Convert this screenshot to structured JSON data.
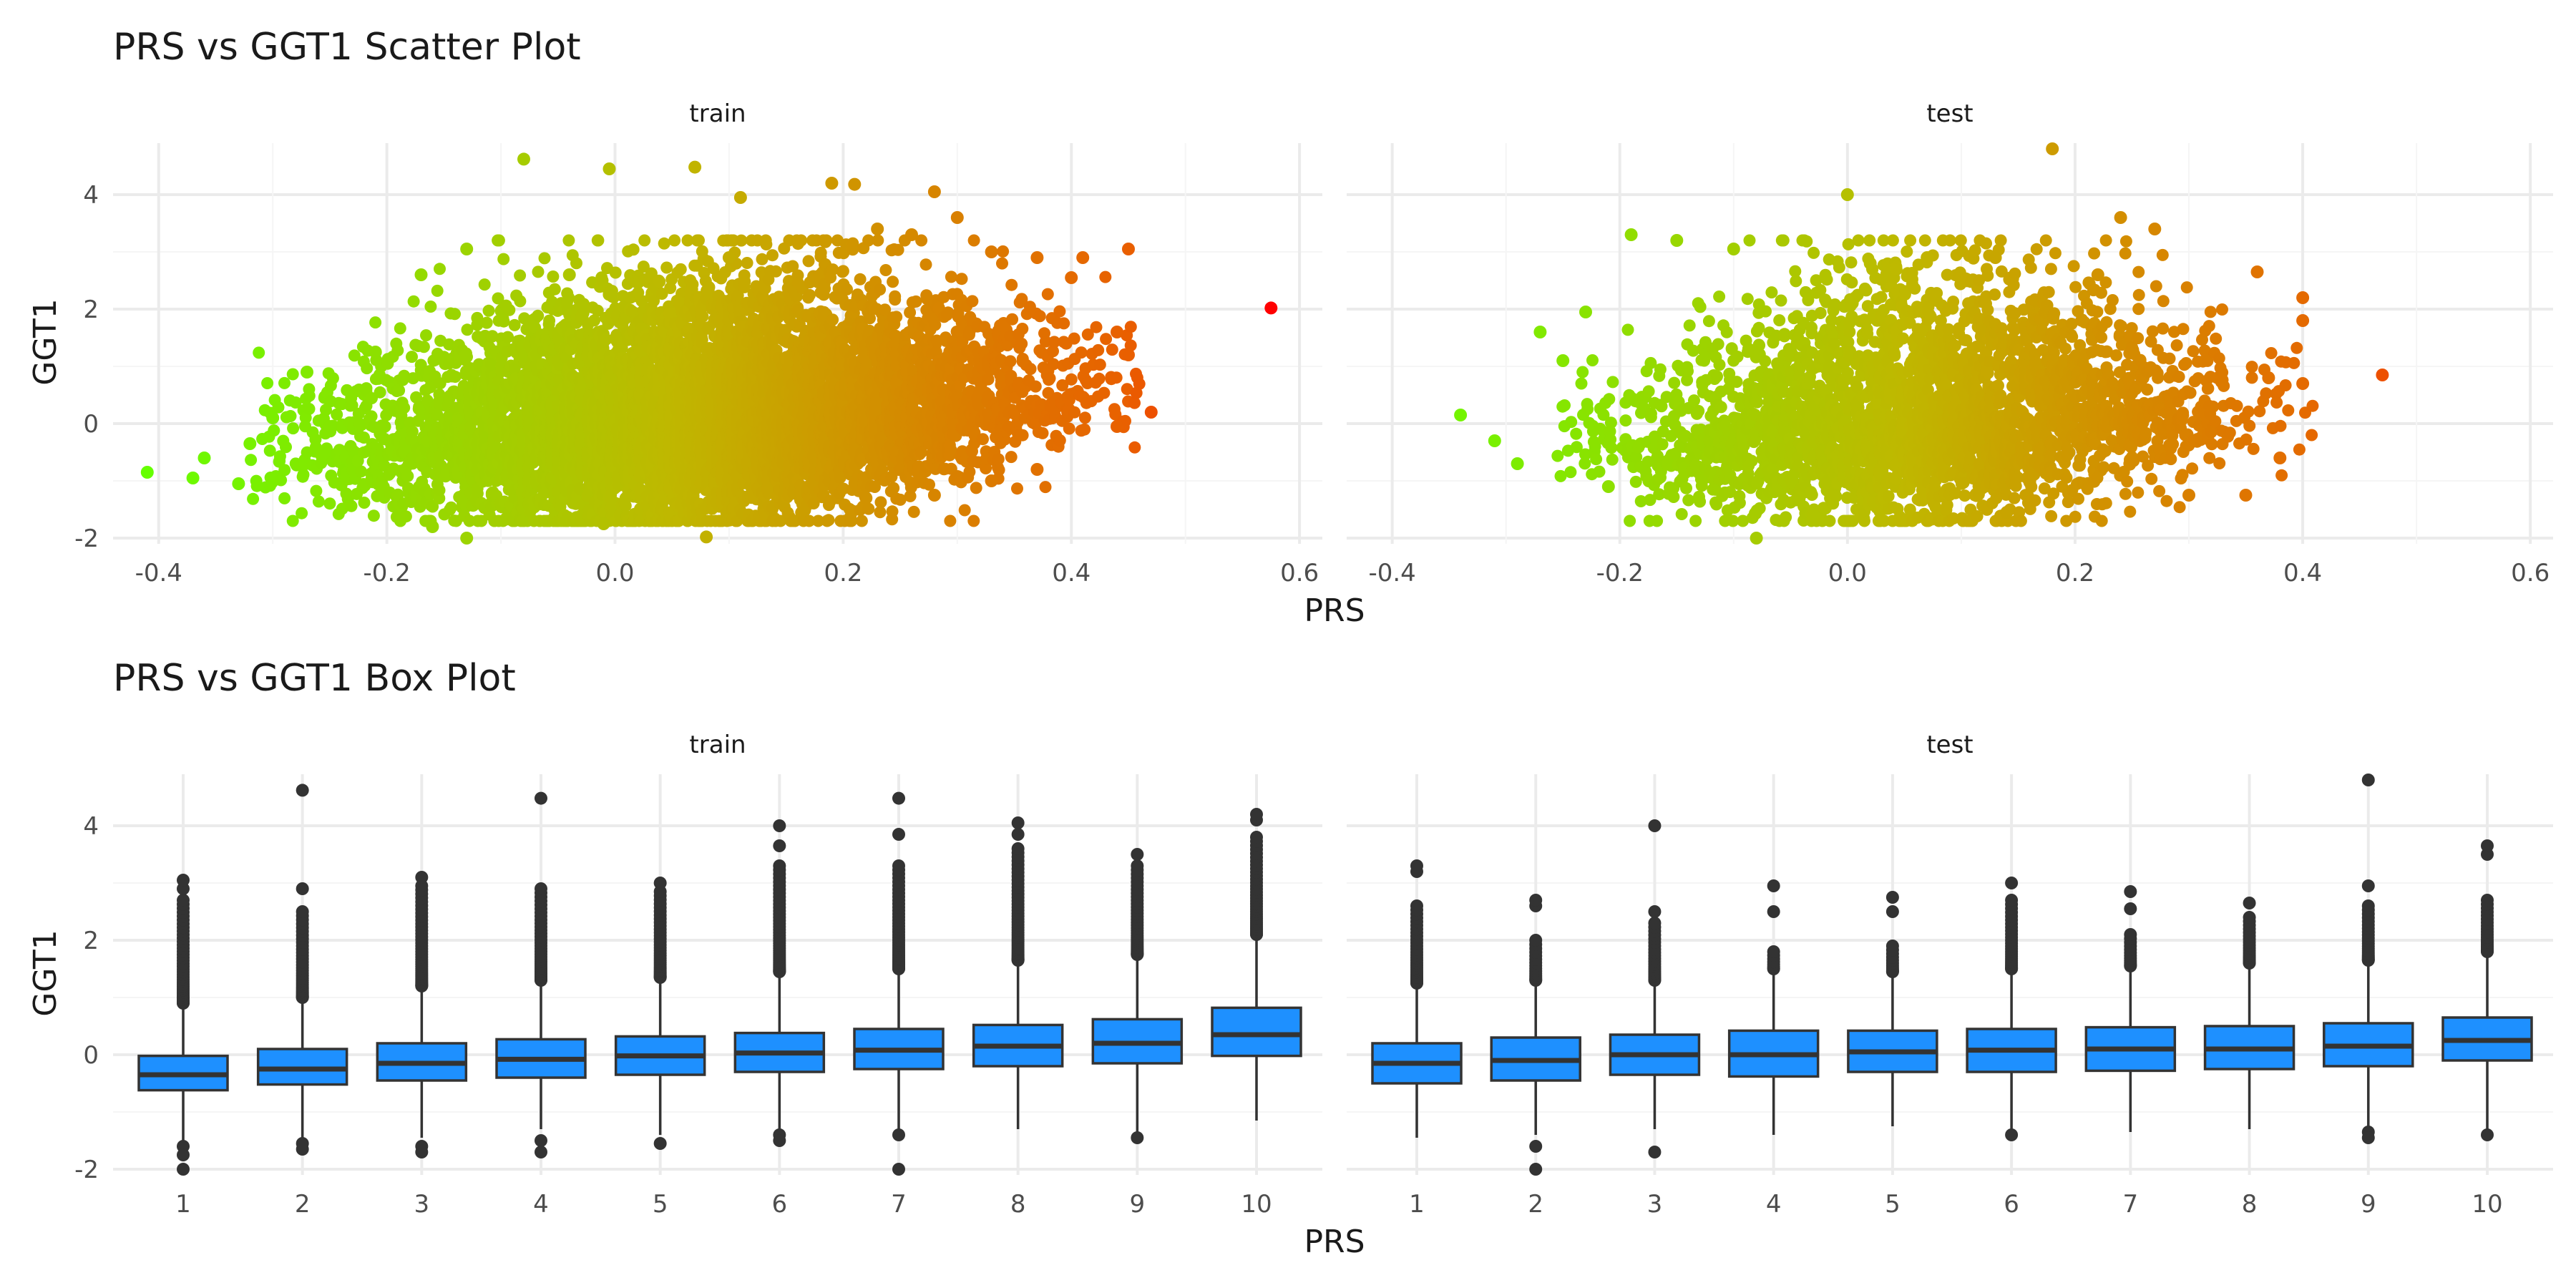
{
  "colors": {
    "grid_major": "#EBEBEB",
    "grid_minor": "#F5F5F5",
    "axis_text": "#4D4D4D",
    "title_text": "#1A1A1A",
    "box_fill": "#1E90FF",
    "box_stroke": "#333333",
    "gradient_low": "#66FF00",
    "gradient_mid": "#BFB800",
    "gradient_high": "#FF0000"
  },
  "scatter": {
    "title": "PRS vs GGT1 Scatter Plot",
    "xlabel": "PRS",
    "ylabel": "GGT1"
  },
  "box": {
    "title": "PRS vs GGT1 Box Plot",
    "xlabel": "PRS",
    "ylabel": "GGT1"
  },
  "chart_data": [
    {
      "type": "scatter",
      "title": "PRS vs GGT1 Scatter Plot",
      "xlabel": "PRS",
      "ylabel": "GGT1",
      "facets": [
        "train",
        "test"
      ],
      "xlim": [
        -0.44,
        0.62
      ],
      "ylim": [
        -2.1,
        4.9
      ],
      "xticks": [
        -0.4,
        -0.2,
        0.0,
        0.2,
        0.4,
        0.6
      ],
      "xtick_labels": [
        "-0.4",
        "-0.2",
        "0.0",
        "0.2",
        "0.4",
        "0.6"
      ],
      "yticks": [
        -2,
        0,
        2,
        4
      ],
      "ytick_labels": [
        "-2",
        "0",
        "2",
        "4"
      ],
      "grid": true,
      "color_encoding": "PRS (green → red)",
      "points": {
        "train": [
          [
            -0.41,
            -0.85
          ],
          [
            -0.37,
            -0.95
          ],
          [
            -0.36,
            -0.6
          ],
          [
            -0.33,
            -1.05
          ],
          [
            -0.32,
            -0.35
          ],
          [
            -0.3,
            0.1
          ],
          [
            -0.27,
            0.9
          ],
          [
            -0.25,
            -0.05
          ],
          [
            -0.21,
            1.25
          ],
          [
            -0.17,
            2.6
          ],
          [
            -0.16,
            -1.8
          ],
          [
            -0.13,
            -2.0
          ],
          [
            -0.13,
            3.05
          ],
          [
            -0.08,
            4.62
          ],
          [
            -0.04,
            2.6
          ],
          [
            -0.01,
            -1.75
          ],
          [
            -0.005,
            4.45
          ],
          [
            0.07,
            4.48
          ],
          [
            0.08,
            -1.98
          ],
          [
            0.11,
            3.95
          ],
          [
            0.1,
            2.9
          ],
          [
            0.19,
            4.2
          ],
          [
            0.21,
            4.18
          ],
          [
            0.23,
            3.4
          ],
          [
            0.26,
            3.3
          ],
          [
            0.28,
            4.05
          ],
          [
            0.3,
            3.6
          ],
          [
            0.33,
            3.0
          ],
          [
            0.37,
            2.9
          ],
          [
            0.4,
            2.55
          ],
          [
            0.41,
            2.9
          ],
          [
            0.44,
            1.6
          ],
          [
            0.45,
            1.2
          ],
          [
            0.45,
            3.05
          ],
          [
            0.44,
            -0.05
          ],
          [
            0.47,
            0.2
          ],
          [
            0.37,
            -0.8
          ],
          [
            0.33,
            -1.0
          ],
          [
            0.28,
            -1.25
          ],
          [
            0.22,
            -1.3
          ],
          [
            0.575,
            2.02
          ]
        ],
        "test": [
          [
            -0.34,
            0.15
          ],
          [
            -0.31,
            -0.3
          ],
          [
            -0.29,
            -0.7
          ],
          [
            -0.27,
            1.6
          ],
          [
            -0.25,
            1.1
          ],
          [
            -0.23,
            1.95
          ],
          [
            -0.21,
            -1.1
          ],
          [
            -0.19,
            3.3
          ],
          [
            -0.15,
            3.2
          ],
          [
            -0.1,
            3.05
          ],
          [
            -0.08,
            -2.0
          ],
          [
            -0.03,
            -1.6
          ],
          [
            -0.0,
            4.0
          ],
          [
            0.02,
            2.8
          ],
          [
            0.07,
            2.9
          ],
          [
            0.13,
            2.9
          ],
          [
            0.14,
            -1.55
          ],
          [
            0.18,
            4.8
          ],
          [
            0.22,
            2.6
          ],
          [
            0.24,
            3.6
          ],
          [
            0.27,
            3.4
          ],
          [
            0.3,
            -1.25
          ],
          [
            0.35,
            -1.25
          ],
          [
            0.36,
            2.65
          ],
          [
            0.37,
            0.8
          ],
          [
            0.38,
            -0.6
          ],
          [
            0.4,
            2.2
          ],
          [
            0.4,
            1.8
          ],
          [
            0.4,
            0.7
          ],
          [
            0.47,
            0.85
          ]
        ]
      },
      "cloud_shape": {
        "train": {
          "prs_range": [
            -0.3,
            0.44
          ],
          "ggt1_mean_at_min": -0.5,
          "ggt1_mean_at_max": 0.6
        },
        "test": {
          "prs_range": [
            -0.25,
            0.39
          ],
          "ggt1_mean_at_min": -0.3,
          "ggt1_mean_at_max": 0.4
        }
      }
    },
    {
      "type": "box",
      "title": "PRS vs GGT1 Box Plot",
      "xlabel": "PRS",
      "ylabel": "GGT1",
      "facets": [
        "train",
        "test"
      ],
      "categories": [
        "1",
        "2",
        "3",
        "4",
        "5",
        "6",
        "7",
        "8",
        "9",
        "10"
      ],
      "ylim": [
        -2.1,
        4.9
      ],
      "yticks": [
        -2,
        0,
        2,
        4
      ],
      "ytick_labels": [
        "-2",
        "0",
        "2",
        "4"
      ],
      "grid": true,
      "boxes": {
        "train": [
          {
            "category": "1",
            "q1": -0.62,
            "median": -0.35,
            "q3": -0.02,
            "lower": -1.5,
            "upper": 0.9,
            "outliers_high_range": [
              0.9,
              2.7
            ],
            "outliers_high_extra": [
              2.9,
              3.05
            ],
            "outliers_low": [
              -1.6,
              -1.75,
              -2.0
            ]
          },
          {
            "category": "2",
            "q1": -0.52,
            "median": -0.25,
            "q3": 0.1,
            "lower": -1.45,
            "upper": 1.0,
            "outliers_high_range": [
              1.0,
              2.5
            ],
            "outliers_high_extra": [
              2.9,
              4.62
            ],
            "outliers_low": [
              -1.55,
              -1.65
            ]
          },
          {
            "category": "3",
            "q1": -0.45,
            "median": -0.15,
            "q3": 0.2,
            "lower": -1.45,
            "upper": 1.2,
            "outliers_high_range": [
              1.2,
              2.95
            ],
            "outliers_high_extra": [
              3.1
            ],
            "outliers_low": [
              -1.6,
              -1.7
            ]
          },
          {
            "category": "4",
            "q1": -0.4,
            "median": -0.08,
            "q3": 0.27,
            "lower": -1.3,
            "upper": 1.3,
            "outliers_high_range": [
              1.3,
              2.9
            ],
            "outliers_high_extra": [
              4.48
            ],
            "outliers_low": [
              -1.5,
              -1.7
            ]
          },
          {
            "category": "5",
            "q1": -0.35,
            "median": -0.02,
            "q3": 0.32,
            "lower": -1.4,
            "upper": 1.35,
            "outliers_high_range": [
              1.35,
              2.85
            ],
            "outliers_high_extra": [
              3.0
            ],
            "outliers_low": [
              -1.55
            ]
          },
          {
            "category": "6",
            "q1": -0.3,
            "median": 0.03,
            "q3": 0.38,
            "lower": -1.3,
            "upper": 1.45,
            "outliers_high_range": [
              1.45,
              3.3
            ],
            "outliers_high_extra": [
              3.65,
              4.0
            ],
            "outliers_low": [
              -1.4,
              -1.5
            ]
          },
          {
            "category": "7",
            "q1": -0.25,
            "median": 0.08,
            "q3": 0.45,
            "lower": -1.3,
            "upper": 1.5,
            "outliers_high_range": [
              1.5,
              3.3
            ],
            "outliers_high_extra": [
              3.85,
              4.48
            ],
            "outliers_low": [
              -1.4,
              -2.0
            ]
          },
          {
            "category": "8",
            "q1": -0.2,
            "median": 0.15,
            "q3": 0.52,
            "lower": -1.3,
            "upper": 1.65,
            "outliers_high_range": [
              1.65,
              3.6
            ],
            "outliers_high_extra": [
              3.85,
              4.05
            ],
            "outliers_low": []
          },
          {
            "category": "9",
            "q1": -0.15,
            "median": 0.2,
            "q3": 0.62,
            "lower": -1.35,
            "upper": 1.75,
            "outliers_high_range": [
              1.75,
              3.3
            ],
            "outliers_high_extra": [
              3.5
            ],
            "outliers_low": [
              -1.45
            ]
          },
          {
            "category": "10",
            "q1": -0.02,
            "median": 0.35,
            "q3": 0.82,
            "lower": -1.15,
            "upper": 2.1,
            "outliers_high_range": [
              2.1,
              3.8
            ],
            "outliers_high_extra": [
              4.1,
              4.2
            ],
            "outliers_low": []
          }
        ],
        "test": [
          {
            "category": "1",
            "q1": -0.5,
            "median": -0.15,
            "q3": 0.2,
            "lower": -1.45,
            "upper": 1.2,
            "outliers_high_range": [
              1.25,
              2.6
            ],
            "outliers_high_extra": [
              3.2,
              3.3
            ],
            "outliers_low": []
          },
          {
            "category": "2",
            "q1": -0.45,
            "median": -0.1,
            "q3": 0.3,
            "lower": -1.4,
            "upper": 1.25,
            "outliers_high_range": [
              1.3,
              2.0
            ],
            "outliers_high_extra": [
              2.6,
              2.7
            ],
            "outliers_low": [
              -1.6,
              -2.0
            ]
          },
          {
            "category": "3",
            "q1": -0.35,
            "median": 0.0,
            "q3": 0.35,
            "lower": -1.3,
            "upper": 1.3,
            "outliers_high_range": [
              1.3,
              2.3
            ],
            "outliers_high_extra": [
              2.5,
              4.0
            ],
            "outliers_low": [
              -1.7
            ]
          },
          {
            "category": "4",
            "q1": -0.38,
            "median": 0.0,
            "q3": 0.42,
            "lower": -1.4,
            "upper": 1.45,
            "outliers_high_range": [
              1.5,
              1.8
            ],
            "outliers_high_extra": [
              2.5,
              2.95
            ],
            "outliers_low": []
          },
          {
            "category": "5",
            "q1": -0.3,
            "median": 0.05,
            "q3": 0.42,
            "lower": -1.25,
            "upper": 1.4,
            "outliers_high_range": [
              1.45,
              1.9
            ],
            "outliers_high_extra": [
              2.5,
              2.75
            ],
            "outliers_low": []
          },
          {
            "category": "6",
            "q1": -0.3,
            "median": 0.08,
            "q3": 0.45,
            "lower": -1.3,
            "upper": 1.45,
            "outliers_high_range": [
              1.5,
              2.7
            ],
            "outliers_high_extra": [
              3.0
            ],
            "outliers_low": [
              -1.4
            ]
          },
          {
            "category": "7",
            "q1": -0.28,
            "median": 0.1,
            "q3": 0.48,
            "lower": -1.35,
            "upper": 1.5,
            "outliers_high_range": [
              1.55,
              2.1
            ],
            "outliers_high_extra": [
              2.55,
              2.85
            ],
            "outliers_low": []
          },
          {
            "category": "8",
            "q1": -0.25,
            "median": 0.1,
            "q3": 0.5,
            "lower": -1.3,
            "upper": 1.55,
            "outliers_high_range": [
              1.6,
              2.4
            ],
            "outliers_high_extra": [
              2.65
            ],
            "outliers_low": []
          },
          {
            "category": "9",
            "q1": -0.2,
            "median": 0.15,
            "q3": 0.55,
            "lower": -1.3,
            "upper": 1.6,
            "outliers_high_range": [
              1.65,
              2.6
            ],
            "outliers_high_extra": [
              2.95,
              4.8
            ],
            "outliers_low": [
              -1.35,
              -1.45
            ]
          },
          {
            "category": "10",
            "q1": -0.1,
            "median": 0.25,
            "q3": 0.65,
            "lower": -1.3,
            "upper": 1.75,
            "outliers_high_range": [
              1.8,
              2.7
            ],
            "outliers_high_extra": [
              3.5,
              3.65
            ],
            "outliers_low": [
              -1.4
            ]
          }
        ]
      }
    }
  ]
}
